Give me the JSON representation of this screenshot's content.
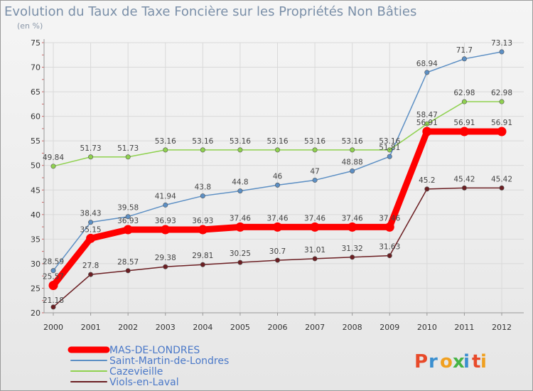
{
  "chart_data": {
    "type": "line",
    "title": "Evolution du Taux de Taxe Foncière sur les Propriétés Non Bâties",
    "subtitle": "(en %)",
    "xlabel": "",
    "ylabel": "",
    "ylim": [
      20,
      75
    ],
    "yticks": [
      "20",
      "25",
      "30",
      "35",
      "40",
      "45",
      "50",
      "55",
      "60",
      "65",
      "70",
      "75"
    ],
    "categories": [
      "2000",
      "2001",
      "2002",
      "2003",
      "2004",
      "2005",
      "2006",
      "2007",
      "2008",
      "2009",
      "2010",
      "2011",
      "2012"
    ],
    "grid": true,
    "legend_position": "bottom-left",
    "series": [
      {
        "name": "Saint-Martin-de-Londres",
        "color": "#5c8fc4",
        "values": [
          28.59,
          38.43,
          39.58,
          41.94,
          43.8,
          44.8,
          46,
          47,
          48.88,
          51.81,
          68.94,
          71.7,
          73.13
        ],
        "labels": [
          "28.59",
          "38.43",
          "39.58",
          "41.94",
          "43.8",
          "44.8",
          "46",
          "47",
          "48.88",
          "51.81",
          "68.94",
          "71.7",
          "73.13"
        ]
      },
      {
        "name": "Cazevieille",
        "color": "#8fd14f",
        "values": [
          49.84,
          51.73,
          51.73,
          53.16,
          53.16,
          53.16,
          53.16,
          53.16,
          53.16,
          53.16,
          58.47,
          62.98,
          62.98
        ],
        "labels": [
          "49.84",
          "51.73",
          "51.73",
          "53.16",
          "53.16",
          "53.16",
          "53.16",
          "53.16",
          "53.16",
          "53.16",
          "58.47",
          "62.98",
          "62.98"
        ]
      },
      {
        "name": "Viols-en-Laval",
        "color": "#6b1e22",
        "values": [
          21.18,
          27.8,
          28.57,
          29.38,
          29.81,
          30.25,
          30.7,
          31.01,
          31.32,
          31.63,
          45.2,
          45.42,
          45.42
        ],
        "labels": [
          "21.18",
          "27.8",
          "28.57",
          "29.38",
          "29.81",
          "30.25",
          "30.7",
          "31.01",
          "31.32",
          "31.63",
          "45.2",
          "45.42",
          "45.42"
        ]
      },
      {
        "name": "MAS-DE-LONDRES",
        "color": "#ff0000",
        "values": [
          25.57,
          35.15,
          36.93,
          36.93,
          36.93,
          37.46,
          37.46,
          37.46,
          37.46,
          37.46,
          56.91,
          56.91,
          56.91
        ],
        "labels": [
          "25.57",
          "35.15",
          "36.93",
          "36.93",
          "36.93",
          "37.46",
          "37.46",
          "37.46",
          "37.46",
          "37.46",
          "56.91",
          "56.91",
          "56.91"
        ]
      }
    ],
    "legend": [
      {
        "name": "MAS-DE-LONDRES",
        "color": "#ff0000"
      },
      {
        "name": "Saint-Martin-de-Londres",
        "color": "#5c8fc4"
      },
      {
        "name": "Cazevieille",
        "color": "#8fd14f"
      },
      {
        "name": "Viols-en-Laval",
        "color": "#6b1e22"
      }
    ]
  },
  "brand": {
    "logo_text": "Proxiti"
  }
}
